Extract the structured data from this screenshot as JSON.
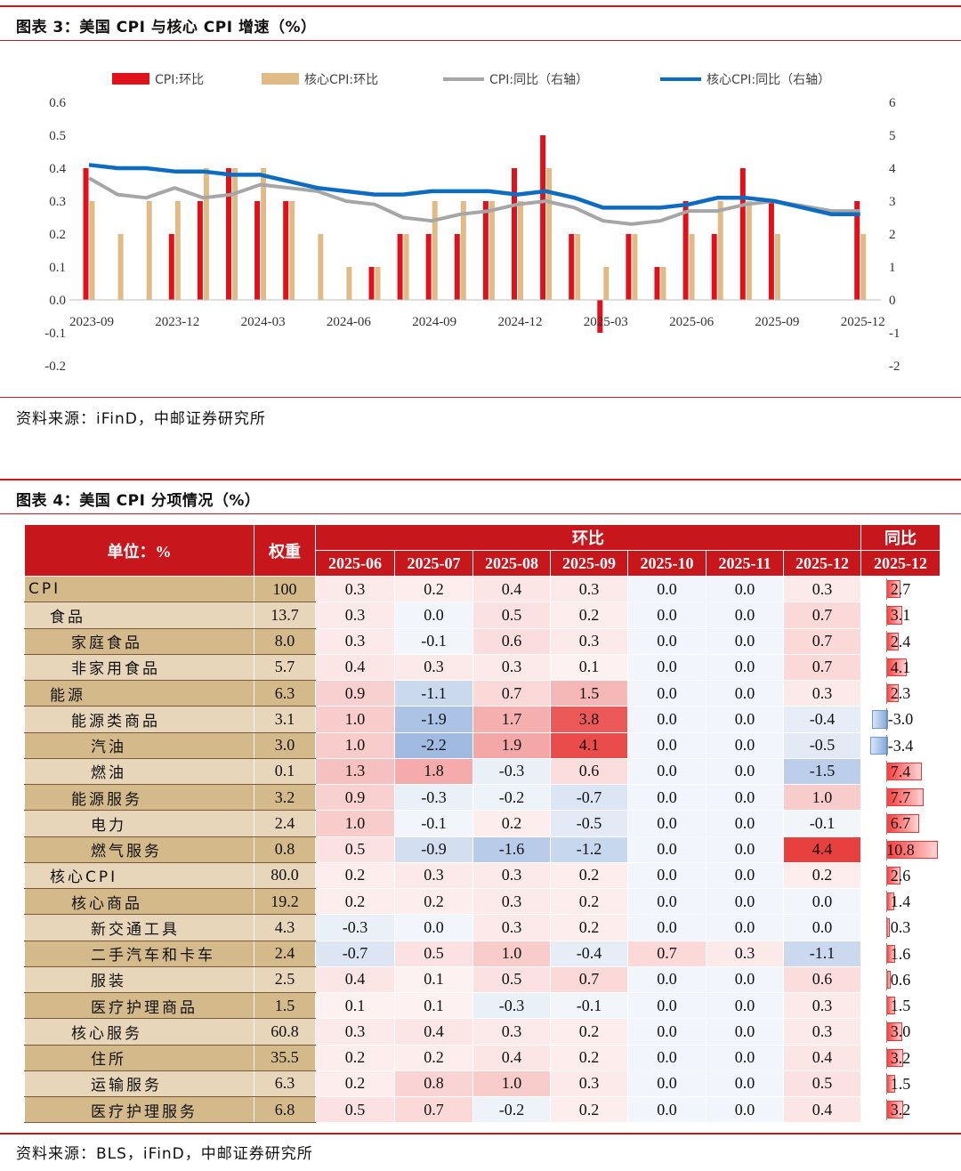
{
  "fig3": {
    "title": "图表 3：美国 CPI 与核心 CPI 增速（%）",
    "source": "资料来源：iFinD，中邮证券研究所"
  },
  "fig4": {
    "title": "图表 4：美国 CPI 分项情况（%）",
    "source": "资料来源：BLS，iFinD，中邮证券研究所",
    "header": {
      "unit": "单位：%",
      "weight": "权重",
      "mom_group": "环比",
      "yoy_group": "同比",
      "mom_months": [
        "2025-06",
        "2025-07",
        "2025-08",
        "2025-09",
        "2025-10",
        "2025-11",
        "2025-12"
      ],
      "yoy_month": "2025-12"
    },
    "colors": {
      "header": "#c8161d",
      "level0": "#e8d6bb",
      "level1": "#d4b98b",
      "pos": "#e8403f",
      "neg": "#4b7cc6"
    },
    "rows": [
      {
        "name": "CPI",
        "level": 0,
        "weight": "100",
        "mom": [
          "0.3",
          "0.2",
          "0.4",
          "0.3",
          "0.0",
          "0.0",
          "0.3"
        ],
        "yoy": "2.7"
      },
      {
        "name": "食品",
        "level": 1,
        "weight": "13.7",
        "mom": [
          "0.3",
          "0.0",
          "0.5",
          "0.2",
          "0.0",
          "0.0",
          "0.7"
        ],
        "yoy": "3.1"
      },
      {
        "name": "家庭食品",
        "level": 2,
        "weight": "8.0",
        "mom": [
          "0.3",
          "-0.1",
          "0.6",
          "0.3",
          "0.0",
          "0.0",
          "0.7"
        ],
        "yoy": "2.4"
      },
      {
        "name": "非家用食品",
        "level": 2,
        "weight": "5.7",
        "mom": [
          "0.4",
          "0.3",
          "0.3",
          "0.1",
          "0.0",
          "0.0",
          "0.7"
        ],
        "yoy": "4.1"
      },
      {
        "name": "能源",
        "level": 1,
        "weight": "6.3",
        "mom": [
          "0.9",
          "-1.1",
          "0.7",
          "1.5",
          "0.0",
          "0.0",
          "0.3"
        ],
        "yoy": "2.3"
      },
      {
        "name": "能源类商品",
        "level": 2,
        "weight": "3.1",
        "mom": [
          "1.0",
          "-1.9",
          "1.7",
          "3.8",
          "0.0",
          "0.0",
          "-0.4"
        ],
        "yoy": "-3.0"
      },
      {
        "name": "汽油",
        "level": 3,
        "weight": "3.0",
        "mom": [
          "1.0",
          "-2.2",
          "1.9",
          "4.1",
          "0.0",
          "0.0",
          "-0.5"
        ],
        "yoy": "-3.4"
      },
      {
        "name": "燃油",
        "level": 3,
        "weight": "0.1",
        "mom": [
          "1.3",
          "1.8",
          "-0.3",
          "0.6",
          "0.0",
          "0.0",
          "-1.5"
        ],
        "yoy": "7.4"
      },
      {
        "name": "能源服务",
        "level": 2,
        "weight": "3.2",
        "mom": [
          "0.9",
          "-0.3",
          "-0.2",
          "-0.7",
          "0.0",
          "0.0",
          "1.0"
        ],
        "yoy": "7.7"
      },
      {
        "name": "电力",
        "level": 3,
        "weight": "2.4",
        "mom": [
          "1.0",
          "-0.1",
          "0.2",
          "-0.5",
          "0.0",
          "0.0",
          "-0.1"
        ],
        "yoy": "6.7"
      },
      {
        "name": "燃气服务",
        "level": 3,
        "weight": "0.8",
        "mom": [
          "0.5",
          "-0.9",
          "-1.6",
          "-1.2",
          "0.0",
          "0.0",
          "4.4"
        ],
        "yoy": "10.8"
      },
      {
        "name": "核心CPI",
        "level": 1,
        "weight": "80.0",
        "mom": [
          "0.2",
          "0.3",
          "0.3",
          "0.2",
          "0.0",
          "0.0",
          "0.2"
        ],
        "yoy": "2.6"
      },
      {
        "name": "核心商品",
        "level": 2,
        "weight": "19.2",
        "mom": [
          "0.2",
          "0.2",
          "0.3",
          "0.2",
          "0.0",
          "0.0",
          "0.0"
        ],
        "yoy": "1.4"
      },
      {
        "name": "新交通工具",
        "level": 3,
        "weight": "4.3",
        "mom": [
          "-0.3",
          "0.0",
          "0.3",
          "0.2",
          "0.0",
          "0.0",
          "0.0"
        ],
        "yoy": "0.3"
      },
      {
        "name": "二手汽车和卡车",
        "level": 3,
        "weight": "2.4",
        "mom": [
          "-0.7",
          "0.5",
          "1.0",
          "-0.4",
          "0.7",
          "0.3",
          "-1.1"
        ],
        "yoy": "1.6"
      },
      {
        "name": "服装",
        "level": 3,
        "weight": "2.5",
        "mom": [
          "0.4",
          "0.1",
          "0.5",
          "0.7",
          "0.0",
          "0.0",
          "0.6"
        ],
        "yoy": "0.6"
      },
      {
        "name": "医疗护理商品",
        "level": 3,
        "weight": "1.5",
        "mom": [
          "0.1",
          "0.1",
          "-0.3",
          "-0.1",
          "0.0",
          "0.0",
          "0.3"
        ],
        "yoy": "1.5"
      },
      {
        "name": "核心服务",
        "level": 2,
        "weight": "60.8",
        "mom": [
          "0.3",
          "0.4",
          "0.3",
          "0.2",
          "0.0",
          "0.0",
          "0.3"
        ],
        "yoy": "3.0"
      },
      {
        "name": "住所",
        "level": 3,
        "weight": "35.5",
        "mom": [
          "0.2",
          "0.2",
          "0.4",
          "0.2",
          "0.0",
          "0.0",
          "0.4"
        ],
        "yoy": "3.2"
      },
      {
        "name": "运输服务",
        "level": 3,
        "weight": "6.3",
        "mom": [
          "0.2",
          "0.8",
          "1.0",
          "0.3",
          "0.0",
          "0.0",
          "0.5"
        ],
        "yoy": "1.5"
      },
      {
        "name": "医疗护理服务",
        "level": 3,
        "weight": "6.8",
        "mom": [
          "0.5",
          "0.7",
          "-0.2",
          "0.2",
          "0.0",
          "0.0",
          "0.4"
        ],
        "yoy": "3.2"
      }
    ]
  },
  "chart_data": {
    "type": "bar",
    "title": "",
    "x_ticks": [
      "2023-09",
      "2023-12",
      "2024-03",
      "2024-06",
      "2024-09",
      "2024-12",
      "2025-03",
      "2025-06",
      "2025-09",
      "2025-12"
    ],
    "y_left": {
      "range": [
        -0.2,
        0.6
      ],
      "ticks": [
        "-0.2",
        "-0.1",
        "0.0",
        "0.1",
        "0.2",
        "0.3",
        "0.4",
        "0.5",
        "0.6"
      ]
    },
    "y_right": {
      "range": [
        -2,
        6
      ],
      "ticks": [
        "-2",
        "-1",
        "0",
        "1",
        "2",
        "3",
        "4",
        "5",
        "6"
      ]
    },
    "grid": false,
    "legend_position": "top",
    "months": [
      "2023-09",
      "2023-10",
      "2023-11",
      "2023-12",
      "2024-01",
      "2024-02",
      "2024-03",
      "2024-04",
      "2024-05",
      "2024-06",
      "2024-07",
      "2024-08",
      "2024-09",
      "2024-10",
      "2024-11",
      "2024-12",
      "2025-01",
      "2025-02",
      "2025-03",
      "2025-04",
      "2025-05",
      "2025-06",
      "2025-07",
      "2025-08",
      "2025-09",
      "2025-10",
      "2025-11",
      "2025-12"
    ],
    "series": [
      {
        "name": "CPI:环比",
        "kind": "bar",
        "axis": "left",
        "color": "#e0111b",
        "values": [
          0.4,
          0.0,
          0.0,
          0.2,
          0.3,
          0.4,
          0.3,
          0.3,
          0.0,
          0.0,
          0.1,
          0.2,
          0.2,
          0.2,
          0.3,
          0.4,
          0.5,
          0.2,
          -0.1,
          0.2,
          0.1,
          0.3,
          0.2,
          0.4,
          0.3,
          null,
          null,
          0.3
        ]
      },
      {
        "name": "核心CPI:环比",
        "kind": "bar",
        "axis": "left",
        "color": "#e0bb85",
        "values": [
          0.3,
          0.2,
          0.3,
          0.3,
          0.4,
          0.4,
          0.4,
          0.3,
          0.2,
          0.1,
          0.1,
          0.2,
          0.3,
          0.3,
          0.3,
          0.3,
          0.4,
          0.2,
          0.1,
          0.2,
          0.1,
          0.2,
          0.3,
          0.3,
          0.2,
          null,
          null,
          0.2
        ]
      },
      {
        "name": "CPI:同比（右轴）",
        "kind": "line",
        "axis": "right",
        "color": "#a6a6a6",
        "values": [
          3.7,
          3.2,
          3.1,
          3.4,
          3.1,
          3.2,
          3.5,
          3.4,
          3.3,
          3.0,
          2.9,
          2.5,
          2.4,
          2.6,
          2.7,
          2.9,
          3.0,
          2.8,
          2.4,
          2.3,
          2.4,
          2.7,
          2.7,
          2.9,
          3.0,
          null,
          2.7,
          2.7
        ]
      },
      {
        "name": "核心CPI:同比（右轴）",
        "kind": "line",
        "axis": "right",
        "color": "#0c6cc4",
        "values": [
          4.1,
          4.0,
          4.0,
          3.9,
          3.9,
          3.8,
          3.8,
          3.6,
          3.4,
          3.3,
          3.2,
          3.2,
          3.3,
          3.3,
          3.3,
          3.2,
          3.3,
          3.1,
          2.8,
          2.8,
          2.8,
          2.9,
          3.1,
          3.1,
          3.0,
          null,
          2.6,
          2.6
        ]
      }
    ]
  }
}
